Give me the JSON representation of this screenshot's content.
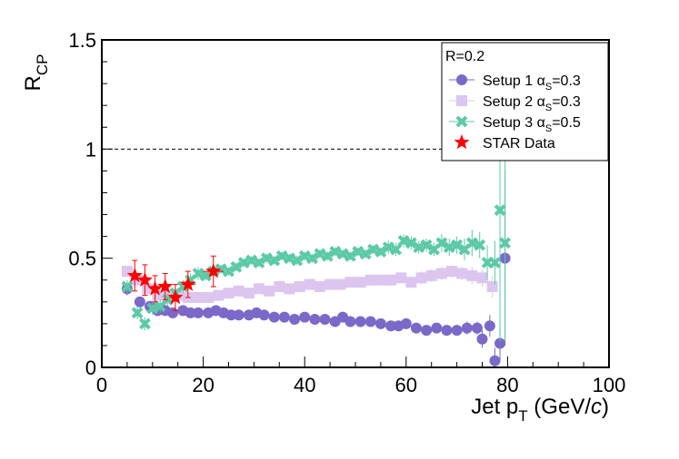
{
  "chart_data": {
    "type": "scatter",
    "ylabel_main": "R",
    "ylabel_sub": "CP",
    "xlabel_main": "Jet p",
    "xlabel_sub": "T",
    "xlabel_unit_open": " (GeV/",
    "xlabel_unit_c": "c",
    "xlabel_unit_close": ")",
    "xlim": [
      0,
      100
    ],
    "ylim": [
      0,
      1.5
    ],
    "x_ticks": [
      {
        "value": 0,
        "label": "0"
      },
      {
        "value": 20,
        "label": "20"
      },
      {
        "value": 40,
        "label": "40"
      },
      {
        "value": 60,
        "label": "60"
      },
      {
        "value": 80,
        "label": "80"
      },
      {
        "value": 100,
        "label": "100"
      }
    ],
    "y_ticks": [
      {
        "value": 0,
        "label": "0"
      },
      {
        "value": 0.5,
        "label": "0.5"
      },
      {
        "value": 1,
        "label": "1"
      },
      {
        "value": 1.5,
        "label": "1.5"
      }
    ],
    "reference_line": 1.0,
    "legend_header": "R=0.2",
    "series": [
      {
        "name": "Setup 1 αS=0.3",
        "label_main": "Setup 1 α",
        "label_sub": "S",
        "label_tail": "=0.3",
        "marker": "circle",
        "color": "#7b68c8",
        "x": [
          5,
          7.5,
          9.5,
          11,
          12.5,
          14,
          16,
          17.5,
          19,
          21,
          22.5,
          24,
          25.5,
          27,
          29,
          30.5,
          32,
          34,
          36,
          38,
          40,
          42,
          44,
          46,
          47.5,
          49,
          51,
          53,
          55,
          57,
          58.5,
          60,
          62,
          64,
          66,
          68,
          70,
          72,
          74,
          75,
          76.5,
          77.5,
          78.5,
          79.5
        ],
        "y": [
          0.36,
          0.3,
          0.28,
          0.26,
          0.26,
          0.25,
          0.26,
          0.25,
          0.25,
          0.25,
          0.26,
          0.25,
          0.24,
          0.24,
          0.24,
          0.25,
          0.24,
          0.23,
          0.23,
          0.22,
          0.23,
          0.22,
          0.22,
          0.21,
          0.23,
          0.21,
          0.21,
          0.21,
          0.2,
          0.19,
          0.19,
          0.2,
          0.18,
          0.17,
          0.18,
          0.17,
          0.17,
          0.18,
          0.18,
          0.13,
          0.19,
          0.03,
          0.11,
          0.5
        ],
        "err": [
          0.03,
          0.02,
          0.02,
          0.02,
          0.02,
          0.02,
          0.02,
          0.02,
          0.02,
          0.02,
          0.02,
          0.02,
          0.02,
          0.02,
          0.02,
          0.02,
          0.02,
          0.02,
          0.02,
          0.02,
          0.02,
          0.02,
          0.02,
          0.02,
          0.02,
          0.02,
          0.02,
          0.02,
          0.02,
          0.02,
          0.02,
          0.02,
          0.02,
          0.02,
          0.02,
          0.02,
          0.02,
          0.03,
          0.03,
          0.04,
          0.05,
          0.06,
          0.08,
          0.4
        ]
      },
      {
        "name": "Setup 2 αS=0.3",
        "label_main": "Setup 2 α",
        "label_sub": "S",
        "label_tail": "=0.3",
        "marker": "square",
        "color": "#dcc6f0",
        "x": [
          5,
          7,
          9,
          11,
          13,
          15,
          17,
          19,
          21,
          23,
          25,
          27,
          29,
          31,
          33,
          35,
          37,
          39,
          41,
          43,
          45,
          47,
          49,
          51,
          53,
          55,
          57,
          59,
          61,
          63,
          65,
          67,
          69,
          71,
          73,
          75,
          77
        ],
        "y": [
          0.44,
          0.4,
          0.36,
          0.33,
          0.33,
          0.33,
          0.32,
          0.32,
          0.32,
          0.33,
          0.34,
          0.35,
          0.34,
          0.36,
          0.35,
          0.37,
          0.36,
          0.37,
          0.38,
          0.37,
          0.38,
          0.38,
          0.39,
          0.39,
          0.4,
          0.4,
          0.4,
          0.41,
          0.39,
          0.41,
          0.42,
          0.43,
          0.44,
          0.43,
          0.42,
          0.41,
          0.37
        ],
        "err": [
          0.02,
          0.02,
          0.02,
          0.02,
          0.02,
          0.02,
          0.02,
          0.02,
          0.02,
          0.02,
          0.02,
          0.02,
          0.02,
          0.02,
          0.02,
          0.02,
          0.02,
          0.02,
          0.02,
          0.02,
          0.02,
          0.02,
          0.02,
          0.02,
          0.02,
          0.02,
          0.02,
          0.02,
          0.02,
          0.03,
          0.03,
          0.03,
          0.03,
          0.03,
          0.04,
          0.04,
          0.05
        ]
      },
      {
        "name": "Setup 3 αS=0.5",
        "label_main": "Setup 3 α",
        "label_sub": "S",
        "label_tail": "=0.5",
        "marker": "cross",
        "color": "#5cc9a7",
        "x": [
          5,
          7,
          8.5,
          10,
          11.5,
          13,
          14.5,
          16,
          17.5,
          19,
          20.5,
          22,
          23.5,
          25,
          26.5,
          28,
          29.5,
          31,
          32.5,
          34,
          35.5,
          37,
          38.5,
          40,
          41.5,
          43,
          44.5,
          46,
          47.5,
          49,
          50.5,
          52,
          53.5,
          55,
          56.5,
          58,
          59.5,
          61,
          62.5,
          64,
          65.5,
          67,
          68.5,
          70,
          71.5,
          73,
          74.5,
          76,
          77.5,
          78.5,
          79.5
        ],
        "y": [
          0.37,
          0.25,
          0.2,
          0.27,
          0.28,
          0.31,
          0.34,
          0.37,
          0.4,
          0.43,
          0.42,
          0.44,
          0.45,
          0.44,
          0.46,
          0.48,
          0.49,
          0.48,
          0.5,
          0.49,
          0.51,
          0.5,
          0.49,
          0.51,
          0.5,
          0.52,
          0.51,
          0.53,
          0.52,
          0.51,
          0.53,
          0.52,
          0.54,
          0.53,
          0.55,
          0.54,
          0.58,
          0.57,
          0.55,
          0.56,
          0.54,
          0.57,
          0.55,
          0.56,
          0.54,
          0.57,
          0.56,
          0.48,
          0.48,
          0.72,
          0.57
        ],
        "err": [
          0.03,
          0.03,
          0.03,
          0.03,
          0.03,
          0.03,
          0.03,
          0.03,
          0.03,
          0.03,
          0.02,
          0.02,
          0.02,
          0.02,
          0.02,
          0.02,
          0.02,
          0.02,
          0.02,
          0.02,
          0.02,
          0.02,
          0.02,
          0.02,
          0.02,
          0.02,
          0.02,
          0.02,
          0.02,
          0.02,
          0.02,
          0.02,
          0.02,
          0.02,
          0.03,
          0.03,
          0.03,
          0.03,
          0.03,
          0.03,
          0.03,
          0.04,
          0.04,
          0.04,
          0.05,
          0.06,
          0.06,
          0.08,
          0.1,
          0.6,
          0.45
        ]
      },
      {
        "name": "STAR Data",
        "label_main": "STAR Data",
        "label_sub": "",
        "label_tail": "",
        "marker": "star",
        "color": "#ff0000",
        "x": [
          6.5,
          8.5,
          10.5,
          12.5,
          14.5,
          17,
          22
        ],
        "y": [
          0.42,
          0.4,
          0.36,
          0.37,
          0.32,
          0.38,
          0.44
        ],
        "err": [
          0.07,
          0.07,
          0.06,
          0.06,
          0.06,
          0.06,
          0.07
        ],
        "xerr": [
          1.0,
          1.0,
          1.0,
          1.0,
          1.0,
          1.2,
          2.0
        ]
      }
    ]
  }
}
